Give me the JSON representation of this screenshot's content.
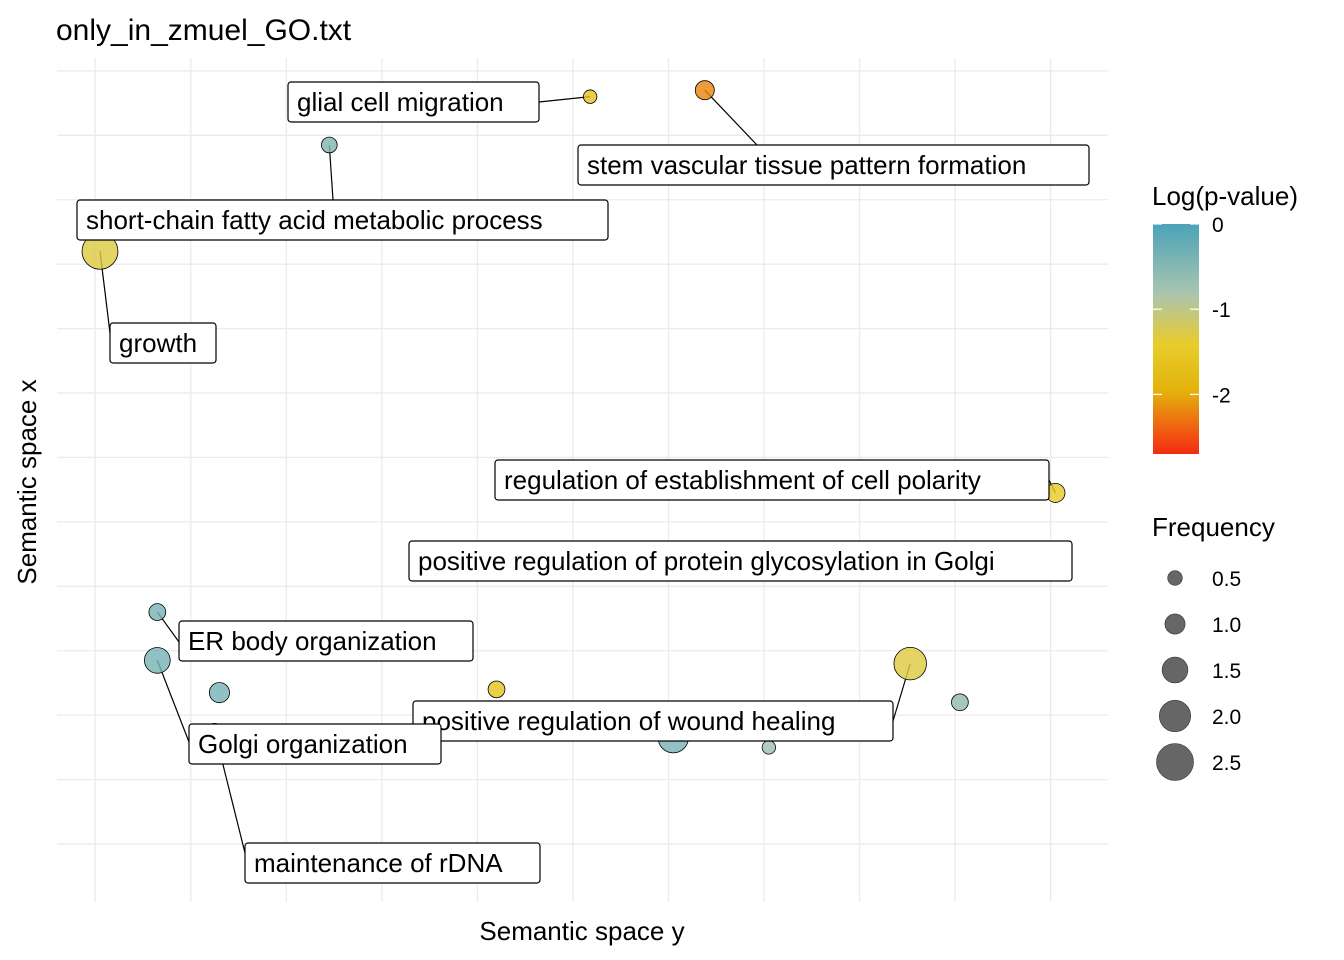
{
  "chart_data": {
    "type": "scatter",
    "title": "only_in_zmuel_GO.txt",
    "xlabel": "Semantic space y",
    "ylabel": "Semantic space x",
    "xlim": [
      -5.4,
      5.6
    ],
    "ylim": [
      -6.9,
      6.2
    ],
    "grid": true,
    "legend_position": "right",
    "points": [
      {
        "label": "glial cell migration",
        "x": 0.18,
        "y": 5.6,
        "logp": -1.8,
        "frequency": 0.4
      },
      {
        "label": "stem vascular tissue pattern formation",
        "x": 1.38,
        "y": 5.7,
        "logp": -2.25,
        "frequency": 0.9
      },
      {
        "label": "short-chain fatty acid metabolic process",
        "x": -2.55,
        "y": 4.85,
        "logp": -0.7,
        "frequency": 0.6
      },
      {
        "label": "growth",
        "x": -4.95,
        "y": 3.2,
        "logp": -1.6,
        "frequency": 2.4
      },
      {
        "label": "regulation of establishment of cell polarity",
        "x": 5.05,
        "y": -0.55,
        "logp": -1.7,
        "frequency": 0.9
      },
      {
        "label": "positive regulation of protein glycosylation in Golgi",
        "x": 2.75,
        "y": -1.65,
        "logp": -2.6,
        "frequency": 1.8
      },
      {
        "label": "ER body organization",
        "x": -4.35,
        "y": -2.4,
        "logp": -0.6,
        "frequency": 0.7
      },
      {
        "label": "positive regulation of wound healing",
        "x": 3.53,
        "y": -3.2,
        "logp": -1.6,
        "frequency": 2.1
      },
      {
        "label": "Golgi organization",
        "x": -4.35,
        "y": -3.15,
        "logp": -0.6,
        "frequency": 1.5
      },
      {
        "label": "",
        "x": -3.7,
        "y": -3.65,
        "logp": -0.6,
        "frequency": 1.0
      },
      {
        "label": "",
        "x": -0.8,
        "y": -3.6,
        "logp": -1.8,
        "frequency": 0.7
      },
      {
        "label": "",
        "x": 4.05,
        "y": -3.8,
        "logp": -0.9,
        "frequency": 0.7
      },
      {
        "label": "maintenance of rDNA",
        "x": -3.75,
        "y": -4.25,
        "logp": -1.5,
        "frequency": 0.6
      },
      {
        "label": "",
        "x": 1.05,
        "y": -4.35,
        "logp": -0.6,
        "frequency": 1.9
      },
      {
        "label": "",
        "x": 2.05,
        "y": -4.5,
        "logp": -1.1,
        "frequency": 0.4
      }
    ],
    "color_legend": {
      "title": "Log(p-value)",
      "ticks": [
        "0",
        "-1",
        "-2"
      ],
      "range": [
        -2.7,
        0
      ]
    },
    "size_legend": {
      "title": "Frequency",
      "ticks": [
        "0.5",
        "1.0",
        "1.5",
        "2.0",
        "2.5"
      ]
    },
    "colors": {
      "high": "#4aa3b8",
      "mid": "#e8c72a",
      "low": "#f22a10"
    }
  }
}
